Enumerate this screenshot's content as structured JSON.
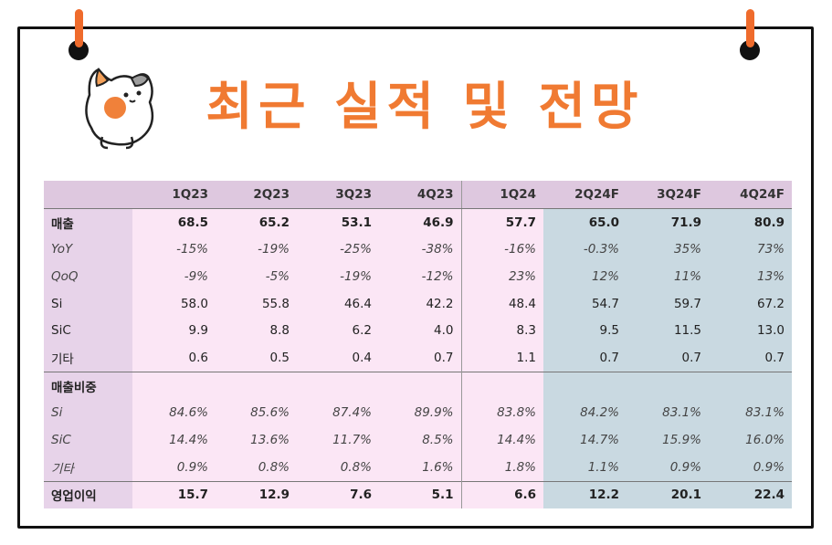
{
  "title": "최근 실적 및 전망",
  "colors": {
    "accent": "#f07a32",
    "pin": "#ef6b2c",
    "forecast_bg": "#c9d9e1",
    "actual_bg": "#fbe6f5",
    "label_bg": "#e7d3e9"
  },
  "table": {
    "headers": [
      "",
      "1Q23",
      "2Q23",
      "3Q23",
      "4Q23",
      "1Q24",
      "2Q24F",
      "3Q24F",
      "4Q24F"
    ],
    "rows": [
      {
        "label": "매출",
        "values": [
          "68.5",
          "65.2",
          "53.1",
          "46.9",
          "57.7",
          "65.0",
          "71.9",
          "80.9"
        ]
      },
      {
        "label": "YoY",
        "values": [
          "-15%",
          "-19%",
          "-25%",
          "-38%",
          "-16%",
          "-0.3%",
          "35%",
          "73%"
        ]
      },
      {
        "label": "QoQ",
        "values": [
          "-9%",
          "-5%",
          "-19%",
          "-12%",
          "23%",
          "12%",
          "11%",
          "13%"
        ]
      },
      {
        "label": "Si",
        "values": [
          "58.0",
          "55.8",
          "46.4",
          "42.2",
          "48.4",
          "54.7",
          "59.7",
          "67.2"
        ]
      },
      {
        "label": "SiC",
        "values": [
          "9.9",
          "8.8",
          "6.2",
          "4.0",
          "8.3",
          "9.5",
          "11.5",
          "13.0"
        ]
      },
      {
        "label": "기타",
        "values": [
          "0.6",
          "0.5",
          "0.4",
          "0.7",
          "1.1",
          "0.7",
          "0.7",
          "0.7"
        ]
      },
      {
        "label": "매출비중",
        "values": [
          "",
          "",
          "",
          "",
          "",
          "",
          "",
          ""
        ]
      },
      {
        "label": "Si",
        "values": [
          "84.6%",
          "85.6%",
          "87.4%",
          "89.9%",
          "83.8%",
          "84.2%",
          "83.1%",
          "83.1%"
        ]
      },
      {
        "label": "SiC",
        "values": [
          "14.4%",
          "13.6%",
          "11.7%",
          "8.5%",
          "14.4%",
          "14.7%",
          "15.9%",
          "16.0%"
        ]
      },
      {
        "label": "기타",
        "values": [
          "0.9%",
          "0.8%",
          "0.8%",
          "1.6%",
          "1.8%",
          "1.1%",
          "0.9%",
          "0.9%"
        ]
      },
      {
        "label": "영업이익",
        "values": [
          "15.7",
          "12.9",
          "7.6",
          "5.1",
          "6.6",
          "12.2",
          "20.1",
          "22.4"
        ]
      }
    ]
  }
}
